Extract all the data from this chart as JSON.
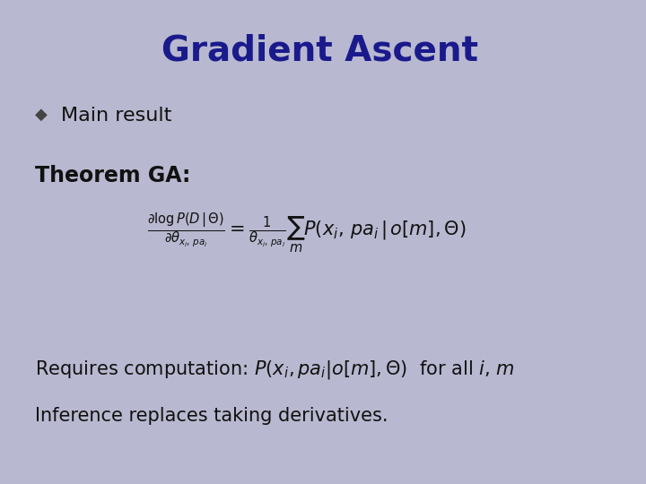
{
  "title": "Gradient Ascent",
  "title_color": "#1a1a8c",
  "title_fontsize": 28,
  "title_fontweight": "bold",
  "background_color": "#b8b8d0",
  "bullet_text": "Main result",
  "theorem_label": "Theorem GA:",
  "requires_line1": "Requires computation: $P(x_i, pa_i|o[m],\\Theta)$  for all $i$, $m$",
  "requires_line2": "Inference replaces taking derivatives.",
  "text_color": "#111111",
  "dark_navy": "#1a1a8c",
  "bullet_color": "#444444"
}
